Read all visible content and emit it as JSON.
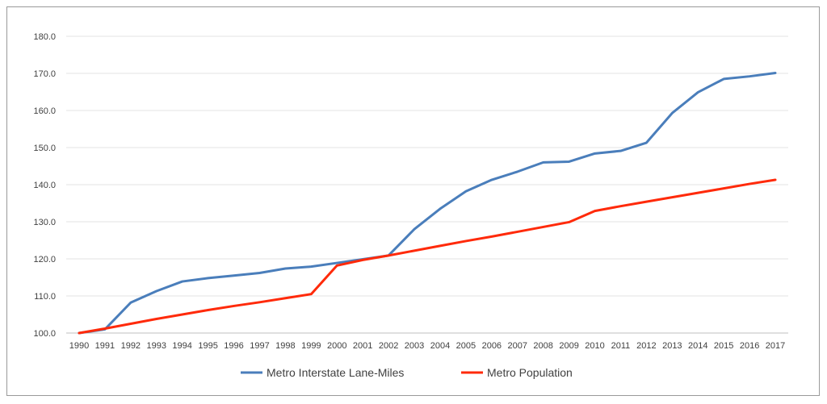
{
  "chart_data": {
    "type": "line",
    "title": "",
    "xlabel": "",
    "ylabel": "",
    "x": [
      "1990",
      "1991",
      "1992",
      "1993",
      "1994",
      "1995",
      "1996",
      "1997",
      "1998",
      "1999",
      "2000",
      "2001",
      "2002",
      "2003",
      "2004",
      "2005",
      "2006",
      "2007",
      "2008",
      "2009",
      "2010",
      "2011",
      "2012",
      "2013",
      "2014",
      "2015",
      "2016",
      "2017"
    ],
    "ylim": [
      100,
      180
    ],
    "yticks": [
      "100.0",
      "110.0",
      "120.0",
      "130.0",
      "140.0",
      "150.0",
      "160.0",
      "170.0",
      "180.0"
    ],
    "grid": true,
    "legend_position": "bottom",
    "series": [
      {
        "name": "Metro Interstate Lane-Miles",
        "color": "#4a7ebb",
        "values": [
          100.0,
          101.0,
          108.2,
          111.3,
          113.9,
          114.8,
          115.5,
          116.2,
          117.4,
          117.9,
          118.9,
          119.9,
          120.9,
          128.0,
          133.5,
          138.2,
          141.3,
          143.5,
          146.0,
          146.2,
          148.4,
          149.1,
          151.3,
          159.3,
          164.9,
          168.5,
          169.2,
          170.1
        ]
      },
      {
        "name": "Metro Population",
        "color": "#ff2a0a",
        "values": [
          100.0,
          101.2,
          102.5,
          103.8,
          105.0,
          106.2,
          107.3,
          108.3,
          109.4,
          110.5,
          118.2,
          119.7,
          120.9,
          122.2,
          123.5,
          124.8,
          126.0,
          127.3,
          128.6,
          129.9,
          132.9,
          134.2,
          135.4,
          136.6,
          137.8,
          139.0,
          140.2,
          141.3
        ]
      }
    ]
  }
}
